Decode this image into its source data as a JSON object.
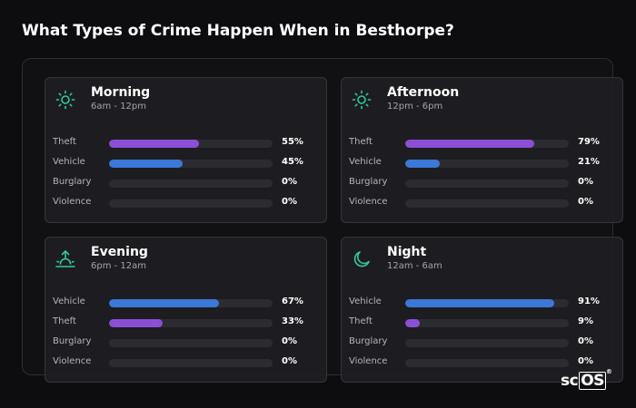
{
  "page": {
    "title": "What Types of Crime Happen When in Besthorpe?",
    "accent_teal": "#2fc9a1",
    "theft_color": "#8b4fd6",
    "vehicle_color": "#3b78d8"
  },
  "cards": [
    {
      "title": "Morning",
      "subtitle": "6am - 12pm",
      "icon": "sun-icon",
      "rows": [
        {
          "label": "Theft",
          "pct": "55%",
          "value": 0.55,
          "color": "#8b4fd6"
        },
        {
          "label": "Vehicle",
          "pct": "45%",
          "value": 0.45,
          "color": "#3b78d8"
        },
        {
          "label": "Burglary",
          "pct": "0%",
          "value": 0,
          "color": "#3b78d8"
        },
        {
          "label": "Violence",
          "pct": "0%",
          "value": 0,
          "color": "#3b78d8"
        }
      ]
    },
    {
      "title": "Afternoon",
      "subtitle": "12pm - 6pm",
      "icon": "sun-icon",
      "rows": [
        {
          "label": "Theft",
          "pct": "79%",
          "value": 0.79,
          "color": "#8b4fd6"
        },
        {
          "label": "Vehicle",
          "pct": "21%",
          "value": 0.21,
          "color": "#3b78d8"
        },
        {
          "label": "Burglary",
          "pct": "0%",
          "value": 0,
          "color": "#3b78d8"
        },
        {
          "label": "Violence",
          "pct": "0%",
          "value": 0,
          "color": "#3b78d8"
        }
      ]
    },
    {
      "title": "Evening",
      "subtitle": "6pm - 12am",
      "icon": "sunset-icon",
      "rows": [
        {
          "label": "Vehicle",
          "pct": "67%",
          "value": 0.67,
          "color": "#3b78d8"
        },
        {
          "label": "Theft",
          "pct": "33%",
          "value": 0.33,
          "color": "#8b4fd6"
        },
        {
          "label": "Burglary",
          "pct": "0%",
          "value": 0,
          "color": "#3b78d8"
        },
        {
          "label": "Violence",
          "pct": "0%",
          "value": 0,
          "color": "#3b78d8"
        }
      ]
    },
    {
      "title": "Night",
      "subtitle": "12am - 6am",
      "icon": "moon-icon",
      "rows": [
        {
          "label": "Vehicle",
          "pct": "91%",
          "value": 0.91,
          "color": "#3b78d8"
        },
        {
          "label": "Theft",
          "pct": "9%",
          "value": 0.09,
          "color": "#8b4fd6"
        },
        {
          "label": "Burglary",
          "pct": "0%",
          "value": 0,
          "color": "#3b78d8"
        },
        {
          "label": "Violence",
          "pct": "0%",
          "value": 0,
          "color": "#3b78d8"
        }
      ]
    }
  ],
  "logo": {
    "prefix": "sc",
    "boxed": "OS",
    "mark": "®"
  }
}
